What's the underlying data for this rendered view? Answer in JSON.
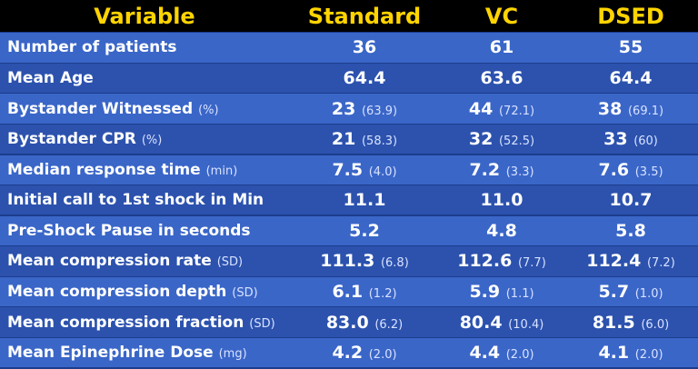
{
  "table": {
    "header": [
      "Variable",
      "Standard",
      "VC",
      "DSED"
    ],
    "rows": [
      {
        "label": "Number of patients",
        "cells": [
          {
            "value": "36"
          },
          {
            "value": "61"
          },
          {
            "value": "55"
          }
        ]
      },
      {
        "label": "Mean Age",
        "cells": [
          {
            "value": "64.4"
          },
          {
            "value": "63.6"
          },
          {
            "value": "64.4"
          }
        ]
      },
      {
        "label": "Bystander Witnessed",
        "unit": "(%)",
        "cells": [
          {
            "value": "23",
            "note": "(63.9)"
          },
          {
            "value": "44",
            "note": "(72.1)"
          },
          {
            "value": "38",
            "note": "(69.1)"
          }
        ]
      },
      {
        "label": "Bystander CPR",
        "unit": "(%)",
        "cells": [
          {
            "value": "21",
            "note": "(58.3)"
          },
          {
            "value": "32",
            "note": "(52.5)"
          },
          {
            "value": "33",
            "note": "(60)"
          }
        ]
      },
      {
        "label": "Median response time",
        "unit": "(min)",
        "cells": [
          {
            "value": "7.5",
            "note": "(4.0)"
          },
          {
            "value": "7.2",
            "note": "(3.3)"
          },
          {
            "value": "7.6",
            "note": "(3.5)"
          }
        ]
      },
      {
        "label": "Initial call to 1st shock in Min",
        "cells": [
          {
            "value": "11.1"
          },
          {
            "value": "11.0"
          },
          {
            "value": "10.7"
          }
        ]
      },
      {
        "label": "Pre-Shock Pause in seconds",
        "cells": [
          {
            "value": "5.2"
          },
          {
            "value": "4.8"
          },
          {
            "value": "5.8"
          }
        ]
      },
      {
        "label": "Mean compression rate",
        "unit": "(SD)",
        "cells": [
          {
            "value": "111.3",
            "note": "(6.8)"
          },
          {
            "value": "112.6",
            "note": "(7.7)"
          },
          {
            "value": "112.4",
            "note": "(7.2)"
          }
        ]
      },
      {
        "label": "Mean compression depth",
        "unit": "(SD)",
        "cells": [
          {
            "value": "6.1",
            "note": "(1.2)"
          },
          {
            "value": "5.9",
            "note": "(1.1)"
          },
          {
            "value": "5.7",
            "note": "(1.0)"
          }
        ]
      },
      {
        "label": "Mean compression fraction",
        "unit": "(SD)",
        "cells": [
          {
            "value": "83.0",
            "note": "(6.2)"
          },
          {
            "value": "80.4",
            "note": "(10.4)"
          },
          {
            "value": "81.5",
            "note": "(6.0)"
          }
        ]
      },
      {
        "label": "Mean Epinephrine Dose",
        "unit": "(mg)",
        "cells": [
          {
            "value": "4.2",
            "note": "(2.0)"
          },
          {
            "value": "4.4",
            "note": "(2.0)"
          },
          {
            "value": "4.1",
            "note": "(2.0)"
          }
        ]
      }
    ]
  }
}
